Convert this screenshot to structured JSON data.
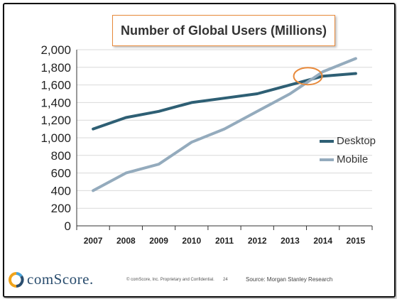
{
  "chart_data": {
    "type": "line",
    "title": "Number of Global Users (Millions)",
    "categories": [
      "2007",
      "2008",
      "2009",
      "2010",
      "2011",
      "2012",
      "2013",
      "2014",
      "2015"
    ],
    "series": [
      {
        "name": "Desktop",
        "color": "#2e5f74",
        "values": [
          1100,
          1230,
          1300,
          1400,
          1450,
          1500,
          1600,
          1700,
          1730
        ]
      },
      {
        "name": "Mobile",
        "color": "#94abbd",
        "values": [
          400,
          600,
          700,
          950,
          1100,
          1300,
          1500,
          1750,
          1900
        ]
      }
    ],
    "ylim": [
      0,
      2000
    ],
    "yticks": [
      0,
      200,
      400,
      600,
      800,
      1000,
      1200,
      1400,
      1600,
      1800,
      2000
    ],
    "ytick_labels": [
      "0",
      "200",
      "400",
      "600",
      "800",
      "1,000",
      "1,200",
      "1,400",
      "1,600",
      "1,800",
      "2,000"
    ],
    "grid": true,
    "legend_position": "right",
    "highlight": {
      "x_between": [
        "2013",
        "2014"
      ],
      "y": 1700,
      "color": "#e8893a"
    }
  },
  "footer": {
    "logo_text": "comScore.",
    "copyright": "© comScore, Inc. Proprietary and Confidential.",
    "page_number": "24",
    "source": "Source: Morgan Stanley Research"
  }
}
